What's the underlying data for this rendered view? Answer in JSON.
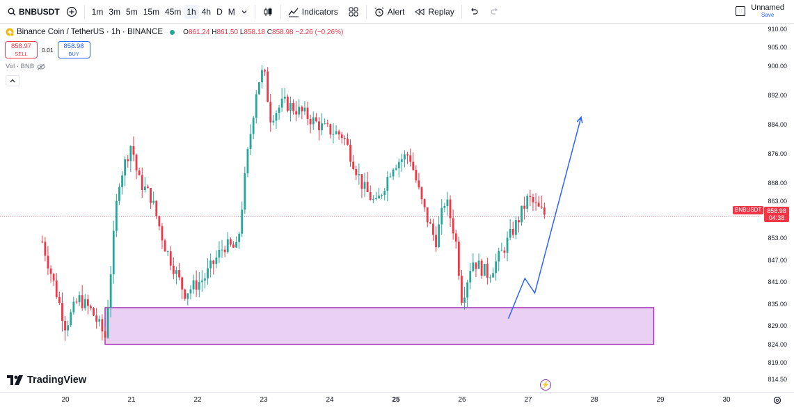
{
  "toolbar": {
    "symbol": "BNBUSDT",
    "intervals": [
      "1m",
      "3m",
      "5m",
      "15m",
      "45m",
      "1h",
      "4h",
      "D",
      "M"
    ],
    "active_interval": "1h",
    "indicators_label": "Indicators",
    "alert_label": "Alert",
    "replay_label": "Replay",
    "layout_name": "Unnamed",
    "save_label": "Save"
  },
  "legend": {
    "title": "Binance Coin / TetherUS · 1h · BINANCE",
    "open_key": "O",
    "open": "861.24",
    "high_key": "H",
    "high": "861.50",
    "low_key": "L",
    "low": "858.18",
    "close_key": "C",
    "close": "858.98",
    "change": "−2.26 (−0.26%)"
  },
  "trade": {
    "sell_price": "858.97",
    "sell_label": "SELL",
    "spread": "0.01",
    "buy_price": "858.98",
    "buy_label": "BUY"
  },
  "volume_label": "Vol · BNB",
  "price_scale": {
    "labels": [
      "910.00",
      "905.00",
      "900.00",
      "892.00",
      "884.00",
      "876.00",
      "868.00",
      "863.00",
      "853.00",
      "847.00",
      "841.00",
      "835.00",
      "829.00",
      "824.00",
      "819.00",
      "814.50"
    ],
    "current_price": "858.98",
    "countdown": "04:38",
    "symbol_tag": "BNBUSDT"
  },
  "time_axis": {
    "labels": [
      "20",
      "21",
      "22",
      "23",
      "24",
      "25",
      "26",
      "27",
      "28",
      "29",
      "30"
    ]
  },
  "branding": {
    "logo_text": "TradingView"
  },
  "colors": {
    "up": "#26a69a",
    "down": "#f23645",
    "zone_fill": "#ead0f2",
    "zone_border": "#9c27b0",
    "projection": "#2962ff",
    "accent": "#2962ff"
  },
  "chart_data": {
    "type": "candlestick",
    "symbol": "BNBUSDT",
    "interval": "1h",
    "last_close": 858.98,
    "current_price_line": 858.98,
    "demand_zone": {
      "from_price": 824.0,
      "to_price": 834.0,
      "from_date": "20.6",
      "to_date": "28.9"
    },
    "projection_path": [
      {
        "date": 26.7,
        "price": 831.0
      },
      {
        "date": 26.95,
        "price": 842.0
      },
      {
        "date": 27.1,
        "price": 838.0
      },
      {
        "date": 27.8,
        "price": 886.0
      }
    ],
    "anchors": [
      {
        "date": 19.65,
        "price": 852.0
      },
      {
        "date": 19.85,
        "price": 839.0
      },
      {
        "date": 20.0,
        "price": 829.0
      },
      {
        "date": 20.2,
        "price": 836.5
      },
      {
        "date": 20.4,
        "price": 833.0
      },
      {
        "date": 20.6,
        "price": 826.0
      },
      {
        "date": 20.8,
        "price": 868.0
      },
      {
        "date": 21.0,
        "price": 879.0
      },
      {
        "date": 21.1,
        "price": 869.0
      },
      {
        "date": 21.3,
        "price": 864.0
      },
      {
        "date": 21.5,
        "price": 851.0
      },
      {
        "date": 21.8,
        "price": 838.0
      },
      {
        "date": 22.1,
        "price": 842.0
      },
      {
        "date": 22.4,
        "price": 851.0
      },
      {
        "date": 22.6,
        "price": 850.0
      },
      {
        "date": 22.75,
        "price": 875.0
      },
      {
        "date": 22.9,
        "price": 895.0
      },
      {
        "date": 23.0,
        "price": 899.0
      },
      {
        "date": 23.1,
        "price": 886.0
      },
      {
        "date": 23.3,
        "price": 890.0
      },
      {
        "date": 23.6,
        "price": 887.0
      },
      {
        "date": 23.9,
        "price": 883.0
      },
      {
        "date": 24.2,
        "price": 881.0
      },
      {
        "date": 24.5,
        "price": 867.0
      },
      {
        "date": 24.7,
        "price": 862.0
      },
      {
        "date": 24.95,
        "price": 873.0
      },
      {
        "date": 25.2,
        "price": 876.0
      },
      {
        "date": 25.4,
        "price": 862.0
      },
      {
        "date": 25.6,
        "price": 852.0
      },
      {
        "date": 25.75,
        "price": 864.0
      },
      {
        "date": 25.9,
        "price": 853.0
      },
      {
        "date": 26.0,
        "price": 836.0
      },
      {
        "date": 26.15,
        "price": 847.0
      },
      {
        "date": 26.4,
        "price": 843.0
      },
      {
        "date": 26.6,
        "price": 849.0
      },
      {
        "date": 26.85,
        "price": 858.0
      },
      {
        "date": 27.0,
        "price": 864.0
      },
      {
        "date": 27.15,
        "price": 861.0
      },
      {
        "date": 27.28,
        "price": 858.98
      }
    ]
  }
}
